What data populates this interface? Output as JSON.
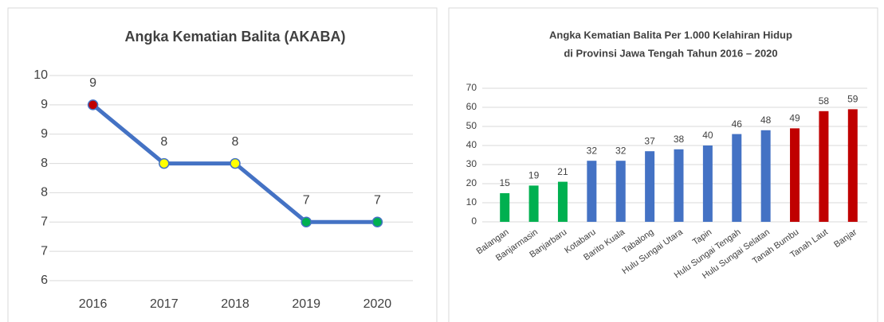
{
  "chart_data": [
    {
      "type": "line",
      "title": "Angka Kematian Balita (AKABA)",
      "categories": [
        "2016",
        "2017",
        "2018",
        "2019",
        "2020"
      ],
      "values": [
        9.4,
        8.4,
        8.4,
        7.4,
        7.4
      ],
      "value_labels": [
        "9",
        "8",
        "8",
        "7",
        "7"
      ],
      "color": "#4472c4",
      "point_colors": [
        "#c00000",
        "#ffff00",
        "#ffff00",
        "#00b050",
        "#00b050"
      ],
      "ylim": [
        6.4,
        9.9
      ],
      "yticks": [
        {
          "value": 6.4,
          "label": "6"
        },
        {
          "value": 6.9,
          "label": "7"
        },
        {
          "value": 7.4,
          "label": "7"
        },
        {
          "value": 7.9,
          "label": "8"
        },
        {
          "value": 8.4,
          "label": "8"
        },
        {
          "value": 8.9,
          "label": "9"
        },
        {
          "value": 9.4,
          "label": "9"
        },
        {
          "value": 9.9,
          "label": "10"
        }
      ],
      "grid": true
    },
    {
      "type": "bar",
      "title": [
        "Angka Kematian Balita Per 1.000 Kelahiran Hidup",
        "di Provinsi Jawa Tengah Tahun 2016 – 2020"
      ],
      "categories": [
        "Balangan",
        "Banjarmasin",
        "Banjarbaru",
        "Kotabaru",
        "Barito Kuala",
        "Tabalong",
        "Hulu Sungai Utara",
        "Tapin",
        "Hulu Sungai Tengah",
        "Hulu Sungai Selatan",
        "Tanah Bumbu",
        "Tanah Laut",
        "Banjar"
      ],
      "values": [
        15,
        19,
        21,
        32,
        32,
        37,
        38,
        40,
        46,
        48,
        49,
        58,
        59
      ],
      "colors": [
        "#00b050",
        "#00b050",
        "#00b050",
        "#4472c4",
        "#4472c4",
        "#4472c4",
        "#4472c4",
        "#4472c4",
        "#4472c4",
        "#4472c4",
        "#c00000",
        "#c00000",
        "#c00000"
      ],
      "ylim": [
        0,
        70
      ],
      "yticks": [
        0,
        10,
        20,
        30,
        40,
        50,
        60,
        70
      ],
      "grid": true
    }
  ]
}
